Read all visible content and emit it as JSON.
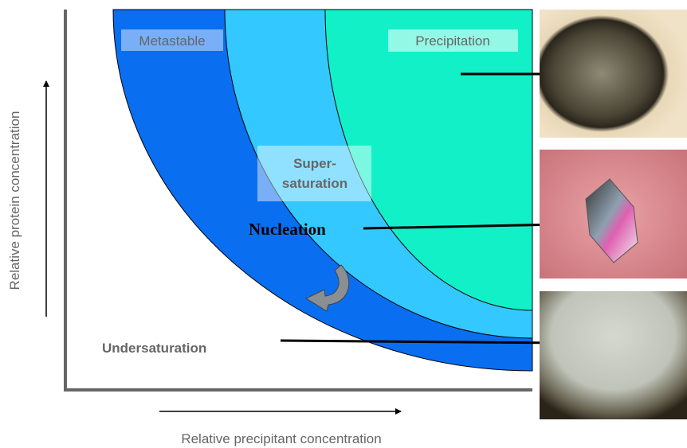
{
  "regions": {
    "metastable": "Metastable",
    "precipitation": "Precipitation",
    "supersaturation": [
      "Super-",
      "saturation"
    ]
  },
  "annotations": {
    "nucleation": "Nucleation",
    "undersaturation": "Undersaturation"
  },
  "axes": {
    "y_label": "Relative protein concentration",
    "x_label": "Relative precipitant concentration"
  }
}
